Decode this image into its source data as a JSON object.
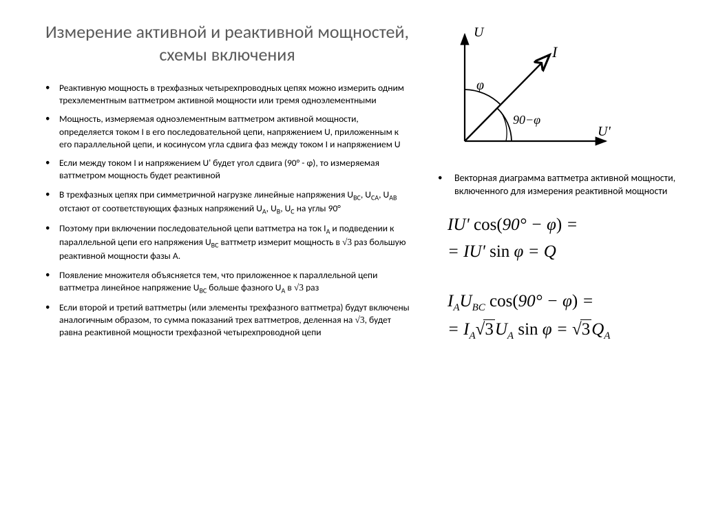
{
  "title": "Измерение активной и реактивной мощностей, схемы включения",
  "bullets_left": [
    "Реактивную мощность в трехфазных четырехпроводных цепях можно измерить одним трехэлементным ваттметром активной мощности или тремя одноэлементными",
    "Мощность, измеряемая одноэлементным ваттметром активной мощности, определяется током I в его последовательной цепи, напряжением U, приложенным к его параллельной цепи, и косинусом угла сдвига фаз между током I и напряжением U",
    "Если между током I и напряжением U' будет угол сдвига (90° - φ), то измеряемая ваттметром мощность будет реактивной",
    "В трехфазных цепях при симметричной нагрузке линейные напряжения U<sub class='small-sub'>BC</sub>, U<sub class='small-sub'>CA</sub>, U<sub class='small-sub'>AB</sub> отстают от соответствующих фазных напряжений U<sub class='small-sub'>A</sub>, U<sub class='small-sub'>B</sub>, U<sub class='small-sub'>C</sub> на углы 90°",
    "Поэтому при включении последовательной цепи ваттметра на ток I<sub class='small-sub'>A</sub> и подведении к параллельной цепи его напряжения U<sub class='small-sub'>BC</sub> ваттметр измерит мощность в <span class='inline-sqrt'>√3</span> раз большую реактивной мощности фазы А.",
    "Появление множителя объясняется тем, что приложенное к параллельной цепи ваттметра линейное напряжение U<sub class='small-sub'>BC</sub> больше фазного U<sub class='small-sub'>A</sub> в <span class='inline-sqrt'>√3</span> раз",
    "Если второй и третий ваттметры (или элементы трехфазного ваттметра) будут включены аналогичным образом, то сумма показаний трех ваттметров, деленная на <span class='inline-sqrt'>√3</span>, будет равна реактивной мощности трехфазной четырехпроводной цепи"
  ],
  "bullet_right": "Векторная диаграмма ваттметра активной мощности, включенного для измерения реактивной мощности",
  "diagram": {
    "labels": {
      "u": "U",
      "i": "I",
      "u_prime": "U'",
      "phi": "φ",
      "angle": "90−φ"
    },
    "colors": {
      "stroke": "#000000",
      "bg": "#ffffff"
    },
    "stroke_width": 2.2
  },
  "formula1_line1": "IU' cos(90° − φ) =",
  "formula1_line2": "= IU' sin φ = Q",
  "formula2_line1": "I<sub>A</sub>U<sub>BC</sub> cos(90° − φ) =",
  "formula2_line2": "= I<sub>A</sub>√3 U<sub>A</sub> sin φ = √3 Q<sub>A</sub>",
  "style": {
    "title_fontsize": 26,
    "bullet_fontsize": 13.5,
    "formula_fontsize": 25,
    "text_color": "#000000",
    "title_color": "#595959",
    "bg_color": "#ffffff"
  }
}
